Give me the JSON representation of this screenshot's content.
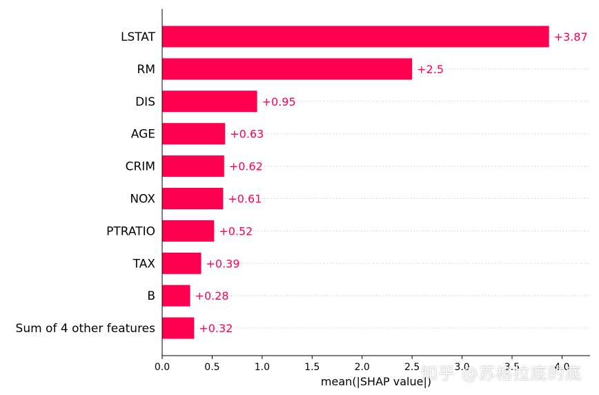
{
  "colors": {
    "bar": "#ff0051",
    "grid": "#cccccc",
    "axis": "#000000"
  },
  "watermark": "知乎 @苏格拉底的底",
  "chart_data": {
    "type": "bar",
    "orientation": "horizontal",
    "categories": [
      "LSTAT",
      "RM",
      "DIS",
      "AGE",
      "CRIM",
      "NOX",
      "PTRATIO",
      "TAX",
      "B",
      "Sum of 4 other features"
    ],
    "values": [
      3.87,
      2.5,
      0.95,
      0.63,
      0.62,
      0.61,
      0.52,
      0.39,
      0.28,
      0.32
    ],
    "value_labels": [
      "+3.87",
      "+2.5",
      "+0.95",
      "+0.63",
      "+0.62",
      "+0.61",
      "+0.52",
      "+0.39",
      "+0.28",
      "+0.32"
    ],
    "xlabel": "mean(|SHAP value|)",
    "ylabel": "",
    "xlim": [
      0,
      4.28
    ],
    "xticks": [
      0.0,
      0.5,
      1.0,
      1.5,
      2.0,
      2.5,
      3.0,
      3.5,
      4.0
    ],
    "xtick_labels": [
      "0.0",
      "0.5",
      "1.0",
      "1.5",
      "2.0",
      "2.5",
      "3.0",
      "3.5",
      "4.0"
    ],
    "grid": "dotted horizontal lines",
    "legend": "none"
  }
}
